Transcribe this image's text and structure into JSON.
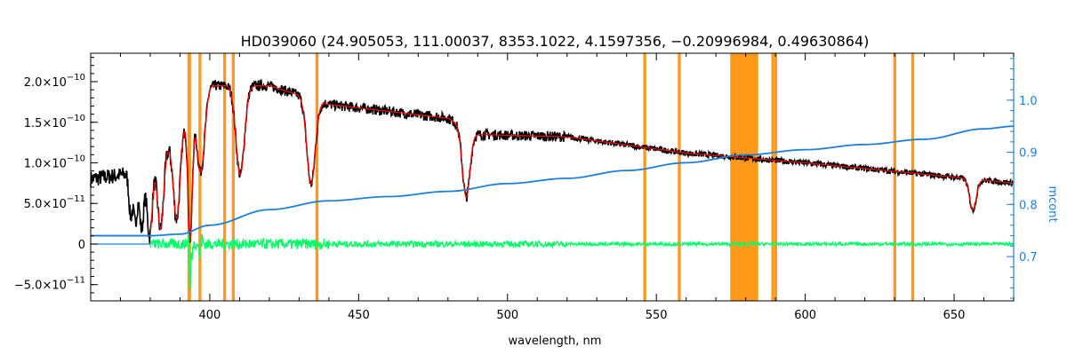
{
  "chart_data": {
    "type": "line",
    "title": "HD039060    (24.905053, 111.00037, 8353.1022, 4.1597356, −0.20996984, 0.49630864)",
    "xlabel": "wavelength, nm",
    "ylabel_left": "",
    "ylabel_right": "mcont",
    "xlim": [
      360,
      670
    ],
    "ylim_left": [
      -7e-11,
      2.35e-10
    ],
    "ylim_right": [
      0.615,
      1.09
    ],
    "x_ticks": [
      {
        "value": 400,
        "label": "400"
      },
      {
        "value": 450,
        "label": "450"
      },
      {
        "value": 500,
        "label": "500"
      },
      {
        "value": 550,
        "label": "550"
      },
      {
        "value": 600,
        "label": "600"
      },
      {
        "value": 650,
        "label": "650"
      }
    ],
    "y_ticks_left": [
      {
        "value": 2e-10,
        "base": "2.0×10",
        "exp": "−10"
      },
      {
        "value": 1.5e-10,
        "base": "1.5×10",
        "exp": "−10"
      },
      {
        "value": 1e-10,
        "base": "1.0×10",
        "exp": "−10"
      },
      {
        "value": 5e-11,
        "base": "5.0×10",
        "exp": "−11"
      },
      {
        "value": 0,
        "base": "0",
        "exp": ""
      },
      {
        "value": -5e-11,
        "base": "−5.0×10",
        "exp": "−11"
      }
    ],
    "y_ticks_right": [
      {
        "value": 1.0,
        "label": "1.0"
      },
      {
        "value": 0.9,
        "label": "0.9"
      },
      {
        "value": 0.8,
        "label": "0.8"
      },
      {
        "value": 0.7,
        "label": "0.7"
      }
    ],
    "masked_regions": [
      [
        392.5,
        393.7
      ],
      [
        396.2,
        397.2
      ],
      [
        404.5,
        405.5
      ],
      [
        407.4,
        408.4
      ],
      [
        435.5,
        436.5
      ],
      [
        545.6,
        546.6
      ],
      [
        557.2,
        558.2
      ],
      [
        574.8,
        584.2
      ],
      [
        588.6,
        589.6
      ],
      [
        589.6,
        590.6
      ],
      [
        629.6,
        630.6
      ],
      [
        635.6,
        636.6
      ]
    ],
    "series": [
      {
        "color": "#000000",
        "continuum": [
          [
            360,
            8e-11
          ],
          [
            380,
            9e-11
          ],
          [
            400,
            1.95e-10
          ],
          [
            420,
            1.95e-10
          ],
          [
            440,
            1.72e-10
          ],
          [
            480,
            1.55e-10
          ],
          [
            490,
            1.35e-10
          ],
          [
            520,
            1.32e-10
          ],
          [
            560,
            1.12e-10
          ],
          [
            600,
            1e-10
          ],
          [
            640,
            8.6e-11
          ],
          [
            670,
            7.5e-11
          ]
        ],
        "lines": [
          {
            "center": 656.3,
            "depth": 3.8e-11,
            "width": 1.6
          },
          {
            "center": 486.1,
            "depth": 8.5e-11,
            "width": 1.8
          },
          {
            "center": 434.0,
            "depth": 1.05e-10,
            "width": 2.0
          },
          {
            "center": 410.2,
            "depth": 1.1e-10,
            "width": 2.0
          },
          {
            "center": 397.0,
            "depth": 9e-11,
            "width": 1.8
          },
          {
            "center": 393.4,
            "depth": 1.55e-10,
            "width": 1.0
          },
          {
            "center": 388.9,
            "depth": 1.05e-10,
            "width": 1.6
          },
          {
            "center": 383.5,
            "depth": 9e-11,
            "width": 1.4
          },
          {
            "center": 379.8,
            "depth": 8e-11,
            "width": 1.2
          },
          {
            "center": 377.1,
            "depth": 7e-11,
            "width": 1.0
          },
          {
            "center": 375.0,
            "depth": 6e-11,
            "width": 0.9
          },
          {
            "center": 373.4,
            "depth": 5e-11,
            "width": 0.8
          }
        ],
        "noise": 4e-12
      },
      {
        "color": "#ff0000",
        "x_start": 380,
        "follows": 0
      },
      {
        "color": "#00ff66",
        "x_start": 380,
        "residual": 3e-12,
        "spikes": [
          [
            393.4,
            -7e-11
          ],
          [
            392.8,
            1.5e-11
          ],
          [
            394.0,
            -2e-11
          ],
          [
            396.5,
            -1.5e-11
          ],
          [
            397.5,
            1e-11
          ]
        ]
      },
      {
        "color": "#1e7fd8",
        "axis": "right",
        "points": [
          [
            360,
            0.74
          ],
          [
            380,
            0.74
          ],
          [
            390,
            0.743
          ],
          [
            400,
            0.76
          ],
          [
            420,
            0.79
          ],
          [
            440,
            0.807
          ],
          [
            460,
            0.815
          ],
          [
            480,
            0.825
          ],
          [
            500,
            0.84
          ],
          [
            520,
            0.85
          ],
          [
            540,
            0.865
          ],
          [
            560,
            0.88
          ],
          [
            580,
            0.895
          ],
          [
            600,
            0.905
          ],
          [
            620,
            0.915
          ],
          [
            640,
            0.925
          ],
          [
            660,
            0.945
          ],
          [
            670,
            0.95
          ]
        ]
      }
    ]
  }
}
